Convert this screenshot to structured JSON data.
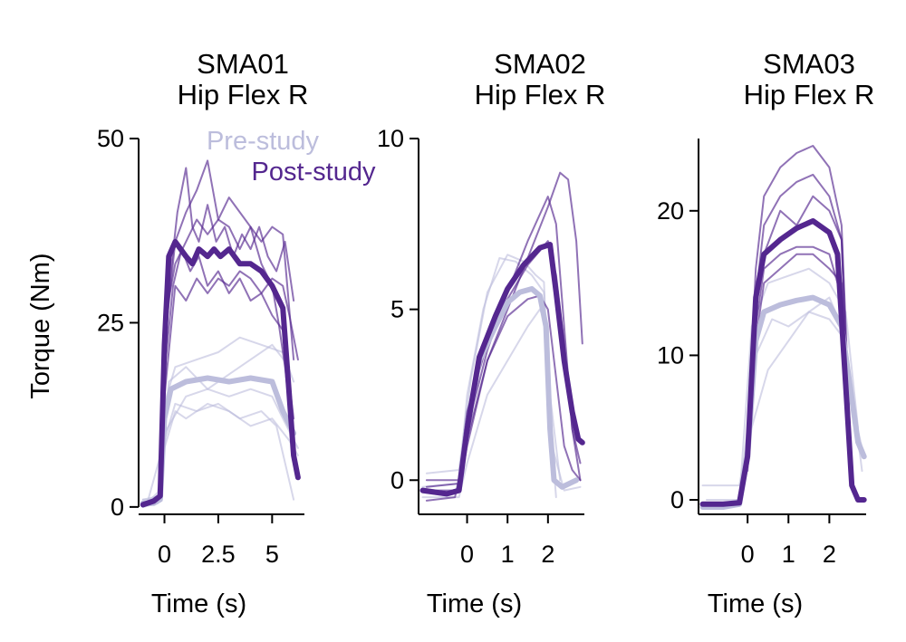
{
  "colors": {
    "pre": "#BCBDDC",
    "post": "#54278F",
    "axis": "#000000"
  },
  "legend": {
    "pre_label": "Pre-study",
    "post_label": "Post-study"
  },
  "chart_data": [
    {
      "type": "line",
      "title": [
        "SMA01",
        "Hip Flex R"
      ],
      "xlabel": "Time (s)",
      "ylabel": "Torque (Nm)",
      "xlim": [
        -1.2,
        6.5
      ],
      "ylim": [
        -1,
        50
      ],
      "xticks": [
        0,
        2.5,
        5
      ],
      "xtick_labels": [
        "0",
        "2.5",
        "5"
      ],
      "yticks": [
        0,
        25,
        50
      ],
      "ytick_labels": [
        "0",
        "25",
        "50"
      ],
      "series": [
        {
          "name": "Pre-study mean",
          "group": "pre",
          "role": "mean",
          "x": [
            -1,
            -0.5,
            -0.2,
            0,
            0.3,
            1,
            2,
            3,
            4,
            5,
            5.5,
            6
          ],
          "y": [
            0.5,
            0.5,
            1,
            12,
            16,
            17,
            17.5,
            17,
            17.5,
            17,
            13,
            10
          ]
        },
        {
          "name": "Post-study mean",
          "group": "post",
          "role": "mean",
          "x": [
            -1,
            -0.5,
            -0.2,
            0,
            0.2,
            0.5,
            1,
            1.3,
            1.6,
            2,
            2.3,
            2.6,
            3,
            3.5,
            4,
            4.5,
            5,
            5.5,
            5.8,
            6,
            6.2
          ],
          "y": [
            0.3,
            0.8,
            1.5,
            22,
            34,
            36,
            34,
            33,
            35,
            34,
            35,
            34,
            35,
            33,
            33,
            32,
            30,
            27,
            15,
            7,
            4
          ]
        },
        {
          "name": "Pre trial 1",
          "group": "pre",
          "role": "trial",
          "x": [
            -1,
            -0.3,
            0,
            0.5,
            1,
            2,
            3,
            4,
            5,
            5.8,
            6.2
          ],
          "y": [
            0,
            0.5,
            8,
            13,
            12,
            14,
            13,
            11,
            12,
            9,
            7
          ]
        },
        {
          "name": "Pre trial 2",
          "group": "pre",
          "role": "trial",
          "x": [
            -1,
            -0.2,
            0,
            0.5,
            1.5,
            2.5,
            3.5,
            4.5,
            5.5,
            6
          ],
          "y": [
            1,
            1,
            14,
            19,
            20,
            21,
            23,
            22,
            21,
            17
          ]
        },
        {
          "name": "Pre trial 3",
          "group": "pre",
          "role": "trial",
          "x": [
            -1,
            -0.3,
            0,
            1,
            2,
            3,
            4,
            5,
            5.5,
            6.2
          ],
          "y": [
            0,
            2,
            10,
            15,
            16,
            15,
            16,
            15,
            12,
            8
          ]
        },
        {
          "name": "Pre trial 4",
          "group": "pre",
          "role": "trial",
          "x": [
            -1,
            -0.2,
            0.2,
            1,
            2,
            3,
            4,
            5,
            5.8
          ],
          "y": [
            1,
            1.5,
            17,
            19,
            16,
            18,
            20,
            22,
            19
          ]
        },
        {
          "name": "Pre trial 5",
          "group": "pre",
          "role": "trial",
          "x": [
            -0.8,
            0,
            0.5,
            1.5,
            2.5,
            3.5,
            4.5,
            5.2,
            6
          ],
          "y": [
            0.5,
            9,
            14,
            13,
            14,
            12,
            13,
            11,
            1
          ]
        },
        {
          "name": "Post trial 1",
          "group": "post",
          "role": "trial",
          "x": [
            0,
            0.3,
            0.6,
            1,
            1.3,
            1.6,
            2,
            2.4,
            2.8,
            3.2,
            3.6,
            4,
            4.4,
            4.8,
            5.2,
            5.6,
            6
          ],
          "y": [
            20,
            32,
            40,
            46,
            38,
            36,
            41,
            36,
            38,
            34,
            37,
            35,
            38,
            34,
            32,
            36,
            28
          ]
        },
        {
          "name": "Post trial 2",
          "group": "post",
          "role": "trial",
          "x": [
            0,
            0.4,
            0.8,
            1.2,
            1.6,
            2,
            2.5,
            3,
            3.5,
            4,
            4.5,
            5,
            5.5,
            6
          ],
          "y": [
            18,
            30,
            35,
            32,
            34,
            30,
            32,
            29,
            31,
            28,
            29,
            26,
            24,
            12
          ]
        },
        {
          "name": "Post trial 3",
          "group": "post",
          "role": "trial",
          "x": [
            0,
            0.5,
            1,
            1.5,
            2,
            2.5,
            3,
            3.5,
            4,
            4.5,
            5,
            5.3,
            5.6,
            6
          ],
          "y": [
            22,
            36,
            40,
            43,
            47,
            39,
            42,
            40,
            38,
            33,
            30,
            25,
            19,
            8
          ]
        },
        {
          "name": "Post trial 4",
          "group": "post",
          "role": "trial",
          "x": [
            0,
            0.5,
            1,
            1.5,
            2,
            2.5,
            3,
            3.5,
            4,
            4.5,
            5,
            5.5,
            5.8,
            6.2
          ],
          "y": [
            15,
            30,
            28,
            31,
            29,
            31,
            30,
            32,
            31,
            29,
            31,
            30,
            26,
            20
          ]
        },
        {
          "name": "Post trial 5",
          "group": "post",
          "role": "trial",
          "x": [
            0,
            0.5,
            1,
            1.5,
            2,
            2.5,
            3,
            3.5,
            4,
            4.5,
            5,
            5.5,
            6
          ],
          "y": [
            25,
            33,
            36,
            39,
            37,
            39,
            38,
            35,
            38,
            36,
            38,
            37,
            20
          ]
        }
      ]
    },
    {
      "type": "line",
      "title": [
        "SMA02",
        "Hip Flex R"
      ],
      "xlabel": "Time (s)",
      "ylabel": "",
      "xlim": [
        -1.2,
        2.9
      ],
      "ylim": [
        -1,
        10
      ],
      "xticks": [
        0,
        1,
        2
      ],
      "xtick_labels": [
        "0",
        "1",
        "2"
      ],
      "yticks": [
        0,
        5,
        10
      ],
      "ytick_labels": [
        "0",
        "5",
        "10"
      ],
      "series": [
        {
          "name": "Pre-study mean",
          "group": "pre",
          "role": "mean",
          "x": [
            -1.1,
            -0.5,
            -0.2,
            0,
            0.3,
            0.7,
            1,
            1.3,
            1.6,
            1.8,
            1.95,
            2.05,
            2.15,
            2.35,
            2.7
          ],
          "y": [
            -0.3,
            -0.4,
            -0.3,
            1.5,
            3.5,
            4.5,
            5.2,
            5.5,
            5.6,
            5.4,
            4.5,
            1.5,
            0,
            -0.2,
            0
          ]
        },
        {
          "name": "Post-study mean",
          "group": "post",
          "role": "mean",
          "x": [
            -1.1,
            -0.5,
            -0.2,
            0,
            0.3,
            0.7,
            1,
            1.4,
            1.8,
            2.05,
            2.2,
            2.4,
            2.6,
            2.75,
            2.85
          ],
          "y": [
            -0.3,
            -0.4,
            -0.3,
            1.5,
            3.6,
            4.8,
            5.6,
            6.3,
            6.8,
            6.9,
            5.5,
            3.5,
            2,
            1.2,
            1.1
          ]
        },
        {
          "name": "Pre trial 1",
          "group": "pre",
          "role": "trial",
          "x": [
            -1.1,
            -0.2,
            0,
            0.4,
            0.8,
            1.2,
            1.6,
            1.9,
            2.0,
            2.2
          ],
          "y": [
            -0.2,
            -0.1,
            2.5,
            5,
            6.5,
            6.4,
            6.0,
            5.5,
            2.5,
            -0.5
          ]
        },
        {
          "name": "Pre trial 2",
          "group": "pre",
          "role": "trial",
          "x": [
            -1.1,
            -0.2,
            0,
            0.5,
            1,
            1.5,
            1.8,
            2.0,
            2.1,
            2.4,
            2.8
          ],
          "y": [
            -0.5,
            -0.5,
            0.5,
            2.5,
            3.5,
            4.5,
            5,
            4.5,
            1,
            -0.3,
            -0.2
          ]
        },
        {
          "name": "Pre trial 3",
          "group": "pre",
          "role": "trial",
          "x": [
            -1,
            -0.2,
            0.1,
            0.5,
            1,
            1.4,
            1.7,
            1.9,
            2.0,
            2.3
          ],
          "y": [
            0.2,
            0.3,
            3,
            5.5,
            6.6,
            6.4,
            6.0,
            5.8,
            3,
            0
          ]
        },
        {
          "name": "Post trial 1",
          "group": "post",
          "role": "trial",
          "x": [
            -1,
            -0.2,
            0,
            0.5,
            1,
            1.5,
            2,
            2.3,
            2.5,
            2.7,
            2.85
          ],
          "y": [
            -0.3,
            -0.3,
            1,
            3.5,
            5,
            6.5,
            8,
            9,
            8.8,
            7,
            4
          ]
        },
        {
          "name": "Post trial 2",
          "group": "post",
          "role": "trial",
          "x": [
            -1,
            -0.2,
            0,
            0.5,
            1,
            1.5,
            2,
            2.2,
            2.4,
            2.6,
            2.8
          ],
          "y": [
            -0.2,
            -0.1,
            1.5,
            3.8,
            5.5,
            7,
            8.3,
            7.5,
            4.5,
            1.5,
            0
          ]
        },
        {
          "name": "Post trial 3",
          "group": "post",
          "role": "trial",
          "x": [
            -1,
            -0.3,
            0,
            0.5,
            1,
            1.5,
            1.8,
            2,
            2.2,
            2.4,
            2.6,
            2.8
          ],
          "y": [
            -0.6,
            -0.5,
            1.2,
            3.5,
            4.8,
            5.3,
            5.4,
            5,
            3,
            1,
            0.3,
            0
          ]
        },
        {
          "name": "Post trial 4",
          "group": "post",
          "role": "trial",
          "x": [
            -1,
            -0.2,
            0,
            0.5,
            1,
            1.5,
            2,
            2.2,
            2.4,
            2.6,
            2.8
          ],
          "y": [
            0,
            0,
            2,
            4,
            5.3,
            6.3,
            7,
            6,
            4,
            1.5,
            0.5
          ]
        }
      ]
    },
    {
      "type": "line",
      "title": [
        "SMA03",
        "Hip Flex R"
      ],
      "xlabel": "Time (s)",
      "ylabel": "",
      "xlim": [
        -1.2,
        2.9
      ],
      "ylim": [
        -1,
        25
      ],
      "xticks": [
        0,
        1,
        2
      ],
      "xtick_labels": [
        "0",
        "1",
        "2"
      ],
      "yticks": [
        0,
        10,
        20
      ],
      "ytick_labels": [
        "0",
        "10",
        "20"
      ],
      "series": [
        {
          "name": "Pre-study mean",
          "group": "pre",
          "role": "mean",
          "x": [
            -1.1,
            -0.6,
            -0.2,
            0,
            0.2,
            0.4,
            0.8,
            1.2,
            1.6,
            2,
            2.3,
            2.5,
            2.7,
            2.85
          ],
          "y": [
            -0.5,
            -0.5,
            -0.3,
            3,
            11,
            13,
            13.5,
            13.8,
            14,
            13.5,
            12,
            8,
            4,
            3
          ]
        },
        {
          "name": "Post-study mean",
          "group": "post",
          "role": "mean",
          "x": [
            -1.1,
            -0.6,
            -0.2,
            0,
            0.2,
            0.4,
            0.8,
            1.2,
            1.6,
            2,
            2.2,
            2.4,
            2.55,
            2.7,
            2.85
          ],
          "y": [
            -0.3,
            -0.3,
            -0.2,
            3,
            14,
            17,
            18,
            18.8,
            19.3,
            18.5,
            17,
            8,
            1,
            0,
            0
          ]
        },
        {
          "name": "Pre trial 1",
          "group": "pre",
          "role": "trial",
          "x": [
            -1.1,
            -0.2,
            0,
            0.5,
            1,
            1.5,
            2,
            2.3,
            2.6,
            2.85
          ],
          "y": [
            1,
            1,
            4,
            9,
            11,
            13,
            14,
            12,
            6,
            3
          ]
        },
        {
          "name": "Pre trial 2",
          "group": "pre",
          "role": "trial",
          "x": [
            -1,
            -0.2,
            0.1,
            0.5,
            1,
            1.5,
            2,
            2.4,
            2.7
          ],
          "y": [
            0,
            0,
            12,
            15,
            15.5,
            16,
            15,
            13,
            5
          ]
        },
        {
          "name": "Pre trial 3",
          "group": "pre",
          "role": "trial",
          "x": [
            -1,
            -0.2,
            0.2,
            0.6,
            1,
            1.5,
            2,
            2.4,
            2.8
          ],
          "y": [
            -0.5,
            0,
            10,
            12.5,
            12,
            13,
            12.5,
            11,
            2
          ]
        },
        {
          "name": "Post trial 1",
          "group": "post",
          "role": "trial",
          "x": [
            0,
            0.2,
            0.4,
            0.8,
            1.2,
            1.6,
            2,
            2.3,
            2.5
          ],
          "y": [
            4,
            16,
            21,
            23,
            24,
            24.5,
            23,
            19,
            5
          ]
        },
        {
          "name": "Post trial 2",
          "group": "post",
          "role": "trial",
          "x": [
            0,
            0.2,
            0.4,
            0.8,
            1.2,
            1.6,
            2,
            2.3,
            2.5
          ],
          "y": [
            3,
            14,
            19,
            21,
            22,
            22.5,
            21,
            18,
            3
          ]
        },
        {
          "name": "Post trial 3",
          "group": "post",
          "role": "trial",
          "x": [
            0,
            0.2,
            0.4,
            0.8,
            1.2,
            1.6,
            2,
            2.3,
            2.5
          ],
          "y": [
            3,
            12,
            16,
            17,
            17.5,
            17.5,
            17,
            14,
            2
          ]
        },
        {
          "name": "Post trial 4",
          "group": "post",
          "role": "trial",
          "x": [
            0,
            0.2,
            0.4,
            0.8,
            1.2,
            1.6,
            2,
            2.3,
            2.5
          ],
          "y": [
            3,
            13,
            17,
            20,
            19,
            21,
            20,
            18,
            4
          ]
        },
        {
          "name": "Post trial 5",
          "group": "post",
          "role": "trial",
          "x": [
            0,
            0.2,
            0.4,
            0.8,
            1.2,
            1.6,
            2,
            2.3,
            2.5
          ],
          "y": [
            2,
            11,
            15,
            16,
            17,
            17,
            16,
            15,
            3
          ]
        }
      ]
    }
  ]
}
